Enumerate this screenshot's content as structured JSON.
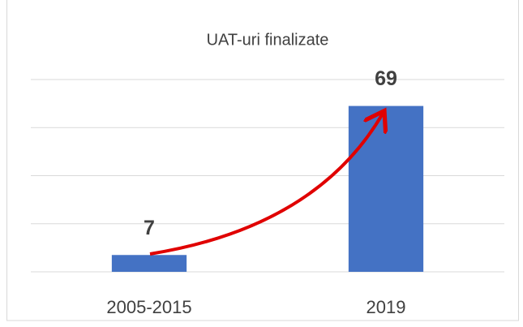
{
  "chart_data": {
    "type": "bar",
    "title": "UAT-uri finalizate",
    "categories": [
      "2005-2015",
      "2019"
    ],
    "values": [
      7,
      69
    ],
    "color": "#4472c4",
    "ylim": [
      0,
      80
    ],
    "yticks": [
      0,
      20,
      40,
      60,
      80
    ],
    "grid": true
  }
}
